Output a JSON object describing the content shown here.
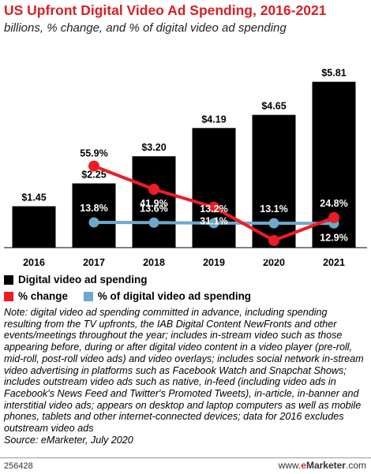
{
  "title": "US Upfront Digital Video Ad Spending, 2016-2021",
  "subtitle": "billions, % change, and % of digital video ad spending",
  "colors": {
    "bar": "#000000",
    "change": "#ee1c25",
    "share": "#6ea8cc",
    "title": "#d81f26"
  },
  "chart_data": {
    "type": "bar",
    "categories": [
      "2016",
      "2017",
      "2018",
      "2019",
      "2020",
      "2021"
    ],
    "series": [
      {
        "name": "Digital video ad spending",
        "type": "bar",
        "values": [
          1.45,
          2.25,
          3.2,
          4.19,
          4.65,
          5.81
        ],
        "labels": [
          "$1.45",
          "$2.25",
          "$3.20",
          "$4.19",
          "$4.65",
          "$5.81"
        ]
      },
      {
        "name": "% change",
        "type": "line",
        "values": [
          null,
          55.9,
          41.9,
          31.1,
          11.0,
          24.8
        ],
        "labels": [
          "",
          "55.9%",
          "41.9%",
          "31.1%",
          "11.0%",
          "24.8%"
        ]
      },
      {
        "name": "% of digital video ad spending",
        "type": "line",
        "values": [
          null,
          13.8,
          13.6,
          13.2,
          13.1,
          12.9
        ],
        "labels": [
          "",
          "13.8%",
          "13.6%",
          "13.2%",
          "13.1%",
          "12.9%"
        ]
      }
    ],
    "legend_position": "bottom-left",
    "grid": false
  },
  "legend": {
    "spend": "Digital video ad spending",
    "change": "% change",
    "share": "% of digital video ad spending"
  },
  "note": "Note: digital video ad spending committed in advance, including spending resulting from the TV upfronts, the IAB Digital Content NewFronts and other events/meetings throughout the year; includes in-stream video such as those appearing before, during or after digital video content in a video player (pre-roll, mid-roll, post-roll video ads) and video overlays; includes social network in-stream video advertising in platforms such as Facebook Watch and Snapchat Shows; includes outstream video ads such as native, in-feed (including video ads in Facebook's News Feed and Twitter's Promoted Tweets), in-article, in-banner and interstitial video ads; appears on desktop and laptop computers as well as mobile phones, tablets and other internet-connected devices; data for 2016 excludes outstream video ads",
  "source": "Source: eMarketer, July 2020",
  "chart_id": "256428",
  "brand": {
    "prefix": "www.",
    "e": "e",
    "rest": "Marketer",
    "suffix": ".com"
  }
}
